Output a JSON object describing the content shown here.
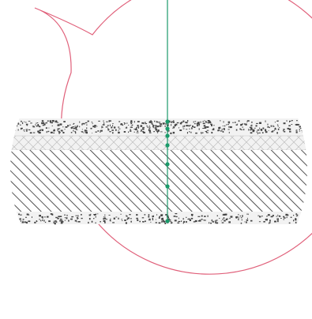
{
  "colors": {
    "background": "#ffffff",
    "callout_outline": "#e0607a",
    "measure_line": "#1a9a6a",
    "measure_point": "#1a9a6a",
    "hatch": "#2a2a2a",
    "speckle": "#444444",
    "layer_band": "#f2f2f2",
    "crosshatch": "#bfbfbf"
  },
  "callout": {
    "shape": "magnifier-bubble-with-pointer-tail",
    "icon": "detail-callout-icon"
  },
  "section": {
    "layers": [
      {
        "name": "top-speckled-aggregate-layer",
        "pattern": "speckle"
      },
      {
        "name": "crosshatch-membrane-layer",
        "pattern": "crosshatch"
      },
      {
        "name": "diagonal-hatch-core-layer",
        "pattern": "diagonal-hatch"
      },
      {
        "name": "bottom-speckled-aggregate-layer",
        "pattern": "speckle"
      }
    ]
  },
  "measurement": {
    "point_count": 7
  }
}
